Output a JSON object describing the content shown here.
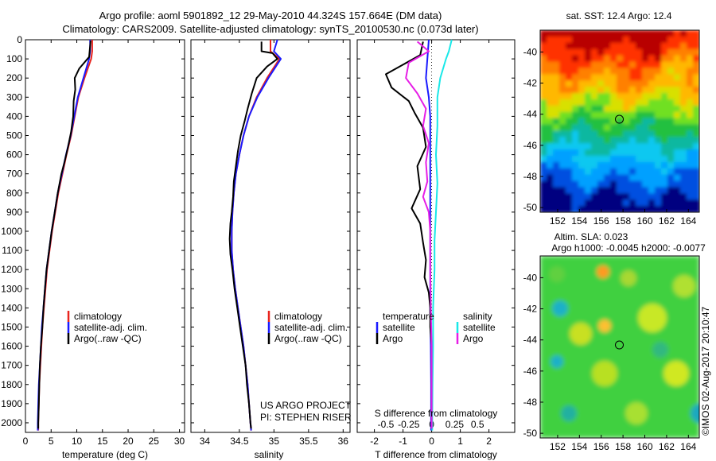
{
  "header": {
    "line1": "Argo profile: aoml 5901892_12 29-May-2010 44.324S 157.664E (DM data)",
    "line2": "Climatology: CARS2009. Satellite-adjusted climatology: synTS_20100530.nc (0.073d later)"
  },
  "map_top": {
    "title": "sat. SST: 12.4 Argo: 12.4"
  },
  "map_bottom": {
    "title1": "Altim. SLA: 0.023",
    "title2": "Argo h1000: -0.0045 h2000: -0.0077"
  },
  "footer": {
    "project": "US ARGO PROJECT",
    "pi": "PI: STEPHEN RISER",
    "imos": "©IMOS 02-Aug-2017 20:10:47"
  },
  "colors": {
    "climatology": "#e8251e",
    "satellite": "#1a1aff",
    "argo": "#000000",
    "sat_salinity": "#1ae8e8",
    "argo_salinity": "#e61ee6"
  },
  "chart_data": [
    {
      "type": "line",
      "panel": "temperature",
      "xlabel": "temperature (deg C)",
      "xlim": [
        0,
        31
      ],
      "xticks": [
        "0",
        "5",
        "10",
        "15",
        "20",
        "25",
        "30"
      ],
      "ylim": [
        2050,
        0
      ],
      "yticks": [
        "0",
        "100",
        "200",
        "300",
        "400",
        "500",
        "600",
        "700",
        "800",
        "900",
        "1000",
        "1100",
        "1200",
        "1300",
        "1400",
        "1500",
        "1600",
        "1700",
        "1800",
        "1900",
        "2000"
      ],
      "legend": [
        "climatology",
        "satellite-adj. clim.",
        "Argo(..raw -QC)"
      ],
      "series": [
        {
          "name": "climatology",
          "color": "climatology",
          "points": [
            [
              13.0,
              0
            ],
            [
              13.0,
              60
            ],
            [
              12.8,
              100
            ],
            [
              11.5,
              200
            ],
            [
              10.3,
              300
            ],
            [
              9.6,
              400
            ],
            [
              8.9,
              500
            ],
            [
              8.0,
              600
            ],
            [
              7.2,
              700
            ],
            [
              6.4,
              800
            ],
            [
              5.8,
              900
            ],
            [
              5.2,
              1000
            ],
            [
              4.7,
              1100
            ],
            [
              4.2,
              1200
            ],
            [
              3.9,
              1300
            ],
            [
              3.6,
              1400
            ],
            [
              3.3,
              1500
            ],
            [
              3.1,
              1600
            ],
            [
              2.9,
              1700
            ],
            [
              2.7,
              1800
            ],
            [
              2.6,
              1900
            ],
            [
              2.5,
              2000
            ],
            [
              2.5,
              2040
            ]
          ]
        },
        {
          "name": "satellite-adj. clim.",
          "color": "satellite",
          "points": [
            [
              12.6,
              0
            ],
            [
              12.6,
              60
            ],
            [
              12.4,
              100
            ],
            [
              11.3,
              200
            ],
            [
              10.2,
              300
            ],
            [
              9.5,
              400
            ],
            [
              8.8,
              500
            ],
            [
              7.9,
              600
            ],
            [
              7.1,
              700
            ],
            [
              6.3,
              800
            ],
            [
              5.7,
              900
            ],
            [
              5.1,
              1000
            ],
            [
              4.6,
              1100
            ],
            [
              4.1,
              1200
            ],
            [
              3.8,
              1300
            ],
            [
              3.5,
              1400
            ],
            [
              3.2,
              1500
            ],
            [
              3.0,
              1600
            ],
            [
              2.8,
              1700
            ],
            [
              2.6,
              1800
            ],
            [
              2.5,
              1900
            ],
            [
              2.4,
              2000
            ],
            [
              2.4,
              2040
            ]
          ]
        },
        {
          "name": "Argo(..raw -QC)",
          "color": "argo",
          "points": [
            [
              12.7,
              5
            ],
            [
              12.4,
              90
            ],
            [
              10.5,
              150
            ],
            [
              9.6,
              200
            ],
            [
              9.7,
              260
            ],
            [
              9.4,
              320
            ],
            [
              9.3,
              400
            ],
            [
              8.9,
              480
            ],
            [
              8.3,
              560
            ],
            [
              7.6,
              640
            ],
            [
              7.0,
              700
            ],
            [
              6.3,
              800
            ],
            [
              5.7,
              900
            ],
            [
              5.1,
              1000
            ],
            [
              4.6,
              1100
            ],
            [
              4.1,
              1200
            ],
            [
              3.8,
              1300
            ],
            [
              3.5,
              1400
            ],
            [
              3.3,
              1500
            ],
            [
              3.0,
              1600
            ],
            [
              2.8,
              1700
            ],
            [
              2.7,
              1800
            ],
            [
              2.6,
              1900
            ],
            [
              2.5,
              2000
            ],
            [
              2.5,
              2030
            ]
          ]
        }
      ]
    },
    {
      "type": "line",
      "panel": "salinity",
      "xlabel": "salinity",
      "xlim": [
        33.8,
        36.1
      ],
      "xticks": [
        "34",
        "34.5",
        "35",
        "35.5",
        "36"
      ],
      "ylim": [
        2050,
        0
      ],
      "legend": [
        "climatology",
        "satellite-adj. clim.",
        "Argo(..raw -QC)"
      ],
      "series": [
        {
          "name": "climatology",
          "color": "climatology",
          "points": [
            [
              34.95,
              0
            ],
            [
              34.95,
              60
            ],
            [
              35.08,
              100
            ],
            [
              34.9,
              200
            ],
            [
              34.75,
              300
            ],
            [
              34.64,
              400
            ],
            [
              34.56,
              500
            ],
            [
              34.5,
              600
            ],
            [
              34.45,
              700
            ],
            [
              34.42,
              800
            ],
            [
              34.4,
              900
            ],
            [
              34.39,
              1000
            ],
            [
              34.39,
              1100
            ],
            [
              34.41,
              1200
            ],
            [
              34.44,
              1300
            ],
            [
              34.48,
              1400
            ],
            [
              34.52,
              1500
            ],
            [
              34.56,
              1600
            ],
            [
              34.59,
              1700
            ],
            [
              34.62,
              1800
            ],
            [
              34.64,
              1900
            ],
            [
              34.66,
              2000
            ],
            [
              34.67,
              2040
            ]
          ]
        },
        {
          "name": "satellite-adj. clim.",
          "color": "satellite",
          "points": [
            [
              35.05,
              0
            ],
            [
              35.0,
              60
            ],
            [
              35.1,
              100
            ],
            [
              34.92,
              200
            ],
            [
              34.76,
              300
            ],
            [
              34.64,
              400
            ],
            [
              34.56,
              500
            ],
            [
              34.5,
              600
            ],
            [
              34.45,
              700
            ],
            [
              34.42,
              800
            ],
            [
              34.4,
              900
            ],
            [
              34.39,
              1000
            ],
            [
              34.39,
              1100
            ],
            [
              34.41,
              1200
            ],
            [
              34.44,
              1300
            ],
            [
              34.48,
              1400
            ],
            [
              34.52,
              1500
            ],
            [
              34.56,
              1600
            ],
            [
              34.59,
              1700
            ],
            [
              34.62,
              1800
            ],
            [
              34.64,
              1900
            ],
            [
              34.66,
              2000
            ],
            [
              34.67,
              2040
            ]
          ]
        },
        {
          "name": "Argo(..raw -QC)",
          "color": "argo",
          "points": [
            [
              34.82,
              10
            ],
            [
              34.82,
              60
            ],
            [
              34.98,
              70
            ],
            [
              35.05,
              100
            ],
            [
              34.9,
              140
            ],
            [
              34.75,
              200
            ],
            [
              34.68,
              280
            ],
            [
              34.62,
              360
            ],
            [
              34.58,
              420
            ],
            [
              34.52,
              500
            ],
            [
              34.48,
              580
            ],
            [
              34.45,
              660
            ],
            [
              34.42,
              740
            ],
            [
              34.41,
              820
            ],
            [
              34.39,
              900
            ],
            [
              34.37,
              960
            ],
            [
              34.36,
              1040
            ],
            [
              34.37,
              1120
            ],
            [
              34.4,
              1200
            ],
            [
              34.43,
              1300
            ],
            [
              34.47,
              1400
            ],
            [
              34.51,
              1500
            ],
            [
              34.55,
              1600
            ],
            [
              34.59,
              1700
            ],
            [
              34.61,
              1800
            ],
            [
              34.64,
              1900
            ],
            [
              34.66,
              2000
            ],
            [
              34.67,
              2030
            ]
          ]
        }
      ]
    },
    {
      "type": "line",
      "panel": "difference",
      "xlabel": "T difference from climatology",
      "xlabel_top": "S difference from climatology",
      "xlim": [
        -2.6,
        2.9
      ],
      "xticks": [
        "-2",
        "-1",
        "0",
        "1",
        "2"
      ],
      "xticks_top": [
        {
          "label": "-0.5",
          "t": -1.6
        },
        {
          "label": "-0.25",
          "t": -0.8
        },
        {
          "label": "0",
          "t": 0
        },
        {
          "label": "0.25",
          "t": 0.8
        },
        {
          "label": "0.5",
          "t": 1.6
        }
      ],
      "ylim": [
        2050,
        0
      ],
      "legend_left_title": "temperature",
      "legend_right_title": "salinity",
      "legend_left": [
        "satellite",
        "Argo"
      ],
      "legend_right": [
        "satellite",
        "Argo"
      ],
      "series": [
        {
          "name": "temperature satellite",
          "color": "satellite",
          "points": [
            [
              -0.1,
              0
            ],
            [
              -0.15,
              100
            ],
            [
              -0.2,
              200
            ],
            [
              -0.1,
              300
            ],
            [
              -0.05,
              400
            ],
            [
              -0.05,
              600
            ],
            [
              -0.05,
              800
            ],
            [
              -0.05,
              1000
            ],
            [
              -0.05,
              1200
            ],
            [
              -0.05,
              1400
            ],
            [
              -0.03,
              1600
            ],
            [
              -0.02,
              1800
            ],
            [
              -0.02,
              2000
            ],
            [
              -0.02,
              2040
            ]
          ]
        },
        {
          "name": "T Argo",
          "color": "argo",
          "points": [
            [
              -0.3,
              10
            ],
            [
              -0.4,
              80
            ],
            [
              -1.6,
              180
            ],
            [
              -1.4,
              250
            ],
            [
              -0.8,
              320
            ],
            [
              -0.6,
              380
            ],
            [
              -0.3,
              460
            ],
            [
              -0.2,
              560
            ],
            [
              -0.5,
              660
            ],
            [
              -0.4,
              780
            ],
            [
              -0.7,
              880
            ],
            [
              -0.4,
              960
            ],
            [
              -0.3,
              1060
            ],
            [
              -0.2,
              1150
            ],
            [
              -0.25,
              1240
            ],
            [
              -0.1,
              1320
            ],
            [
              -0.05,
              1400
            ],
            [
              -0.05,
              1500
            ],
            [
              0,
              1600
            ],
            [
              0,
              1800
            ],
            [
              0,
              2000
            ],
            [
              0,
              2030
            ]
          ]
        },
        {
          "name": "salinity satellite",
          "color": "sat_salinity",
          "points": [
            [
              0.7,
              0
            ],
            [
              0.6,
              60
            ],
            [
              0.5,
              100
            ],
            [
              0.3,
              200
            ],
            [
              0.2,
              300
            ],
            [
              0.2,
              450
            ],
            [
              0.15,
              600
            ],
            [
              0.2,
              750
            ],
            [
              0.15,
              900
            ],
            [
              0.1,
              1050
            ],
            [
              0.1,
              1200
            ],
            [
              0.05,
              1400
            ],
            [
              0.05,
              1600
            ],
            [
              0.03,
              1800
            ],
            [
              0.02,
              2000
            ],
            [
              0.02,
              2040
            ]
          ]
        },
        {
          "name": "S Argo",
          "color": "argo_salinity",
          "points": [
            [
              -0.5,
              10
            ],
            [
              -0.1,
              60
            ],
            [
              -0.8,
              120
            ],
            [
              -0.9,
              200
            ],
            [
              -0.5,
              280
            ],
            [
              -0.2,
              360
            ],
            [
              -0.3,
              450
            ],
            [
              -0.1,
              540
            ],
            [
              -0.2,
              640
            ],
            [
              -0.15,
              740
            ],
            [
              -0.3,
              820
            ],
            [
              -0.1,
              900
            ],
            [
              -0.05,
              1000
            ],
            [
              -0.05,
              1200
            ],
            [
              -0.03,
              1400
            ],
            [
              0,
              1600
            ],
            [
              0,
              1800
            ],
            [
              0,
              2000
            ],
            [
              0,
              2030
            ]
          ]
        }
      ]
    },
    {
      "type": "heatmap",
      "panel": "sst_map",
      "xlim": [
        150.4,
        165.0
      ],
      "ylim": [
        -50.3,
        -38.6
      ],
      "xticks": [
        "152",
        "154",
        "156",
        "158",
        "160",
        "162",
        "164"
      ],
      "yticks": [
        "-40",
        "-42",
        "-44",
        "-46",
        "-48",
        "-50"
      ],
      "marker": {
        "lon": 157.664,
        "lat": -44.324
      }
    },
    {
      "type": "heatmap",
      "panel": "sla_map",
      "xlim": [
        150.4,
        165.0
      ],
      "ylim": [
        -50.3,
        -38.6
      ],
      "xticks": [
        "152",
        "154",
        "156",
        "158",
        "160",
        "162",
        "164"
      ],
      "yticks": [
        "-40",
        "-42",
        "-44",
        "-46",
        "-48",
        "-50"
      ],
      "marker": {
        "lon": 157.664,
        "lat": -44.324
      }
    }
  ]
}
